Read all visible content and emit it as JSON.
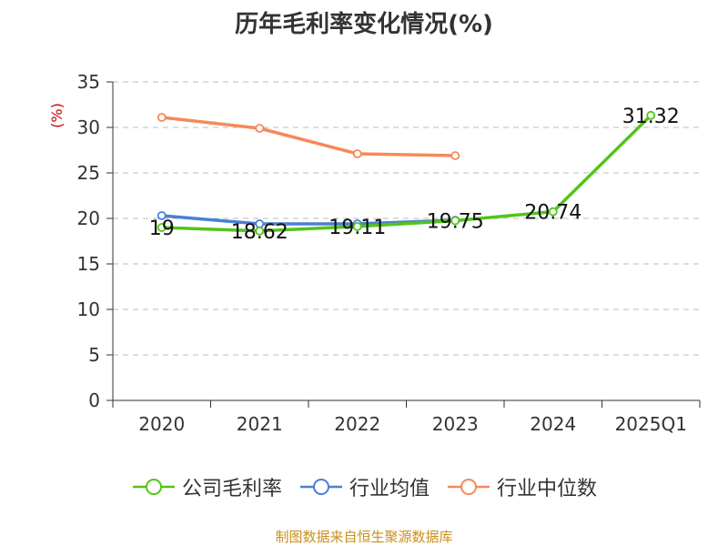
{
  "chart_data": {
    "type": "line",
    "title": "历年毛利率变化情况(%)",
    "ylabel": "(%)",
    "categories": [
      "2020",
      "2021",
      "2022",
      "2023",
      "2024",
      "2025Q1"
    ],
    "ylim": [
      0,
      35
    ],
    "yticks": [
      "0",
      "5",
      "10",
      "15",
      "20",
      "25",
      "30",
      "35"
    ],
    "grid": true,
    "legend_position": "bottom",
    "series": [
      {
        "name": "公司毛利率",
        "color": "#52c41a",
        "values": [
          19,
          18.62,
          19.11,
          19.75,
          20.74,
          31.32
        ],
        "labels": [
          "19",
          "18.62",
          "19.11",
          "19.75",
          "20.74",
          "31.32"
        ]
      },
      {
        "name": "行业均值",
        "color": "#4a7fd6",
        "values": [
          20.3,
          19.4,
          19.4,
          19.8,
          null,
          null
        ]
      },
      {
        "name": "行业中位数",
        "color": "#f5895a",
        "values": [
          31.1,
          29.9,
          27.1,
          26.9,
          null,
          null
        ]
      }
    ]
  },
  "source": "制图数据来自恒生聚源数据库"
}
